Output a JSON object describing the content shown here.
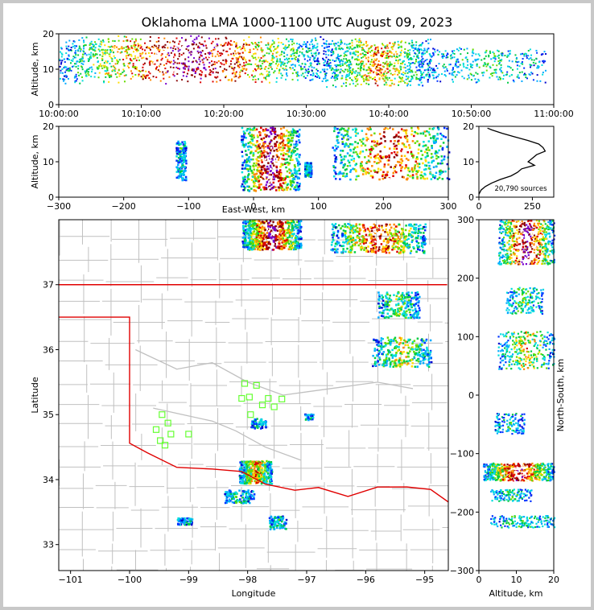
{
  "title": "Oklahoma LMA 1000-1100 UTC August 09, 2023",
  "colors": {
    "state_border": "#e00000",
    "county": "#c0c0c0",
    "river": "#c0c0c0",
    "stations": "#66ff33",
    "frame_bg": "#c8c8c8"
  },
  "chart_data": [
    {
      "id": "alt-vs-time",
      "type": "scatter",
      "ylabel": "Altitude, km",
      "xlabel": "",
      "ylim": [
        0,
        20
      ],
      "yticks": [
        "0",
        "10",
        "20"
      ],
      "xticks": [
        "10:00:00",
        "10:10:00",
        "10:20:00",
        "10:30:00",
        "10:40:00",
        "10:50:00",
        "11:00:00"
      ],
      "xlim_minutes": [
        0,
        60
      ],
      "density_clusters": [
        {
          "t_min": 0,
          "t_max": 32,
          "alt_min": 6,
          "alt_max": 20,
          "weight": 1.0
        },
        {
          "t_min": 32,
          "t_max": 45,
          "alt_min": 5,
          "alt_max": 19,
          "weight": 0.6
        },
        {
          "t_min": 45,
          "t_max": 59,
          "alt_min": 6,
          "alt_max": 17,
          "weight": 0.25
        }
      ]
    },
    {
      "id": "alt-vs-ew",
      "type": "scatter",
      "ylabel": "Altitude, km",
      "xlabel": "East-West, km",
      "xlim": [
        -300,
        300
      ],
      "ylim": [
        0,
        20
      ],
      "xticks": [
        "−300",
        "−200",
        "−100",
        "0",
        "100",
        "200",
        "300"
      ],
      "yticks": [
        "0",
        "10",
        "20"
      ],
      "density_clusters": [
        {
          "x_min": -120,
          "x_max": -105,
          "alt_min": 5,
          "alt_max": 16,
          "weight": 0.2
        },
        {
          "x_min": -20,
          "x_max": 70,
          "alt_min": 2,
          "alt_max": 20,
          "weight": 1.0
        },
        {
          "x_min": 78,
          "x_max": 88,
          "alt_min": 6,
          "alt_max": 10,
          "weight": 0.2
        },
        {
          "x_min": 120,
          "x_max": 300,
          "alt_min": 5,
          "alt_max": 20,
          "weight": 0.8
        }
      ]
    },
    {
      "id": "source-histogram",
      "type": "line",
      "xlim": [
        0,
        350
      ],
      "ylim": [
        0,
        20
      ],
      "xticks": [
        "0",
        "250"
      ],
      "yticks": [
        "0",
        "10",
        "20"
      ],
      "annotation": "20,790 sources",
      "profile": [
        [
          0,
          0.8
        ],
        [
          10,
          2
        ],
        [
          30,
          3
        ],
        [
          60,
          4
        ],
        [
          100,
          5
        ],
        [
          150,
          6
        ],
        [
          180,
          7
        ],
        [
          200,
          8
        ],
        [
          260,
          9
        ],
        [
          230,
          10
        ],
        [
          250,
          11
        ],
        [
          270,
          12
        ],
        [
          310,
          13
        ],
        [
          300,
          14
        ],
        [
          280,
          15
        ],
        [
          230,
          16
        ],
        [
          170,
          17
        ],
        [
          110,
          18
        ],
        [
          60,
          19
        ],
        [
          40,
          19.5
        ]
      ]
    },
    {
      "id": "plan-view-map",
      "type": "scatter",
      "xlabel": "Longitude",
      "ylabel": "Latitude",
      "xlim": [
        -101.2,
        -94.6
      ],
      "ylim": [
        32.6,
        38.0
      ],
      "xticks": [
        "−101",
        "−100",
        "−99",
        "−98",
        "−97",
        "−96",
        "−95"
      ],
      "yticks": [
        "33",
        "34",
        "35",
        "36",
        "37"
      ],
      "stations": [
        [
          -98.05,
          35.48
        ],
        [
          -97.85,
          35.45
        ],
        [
          -98.1,
          35.25
        ],
        [
          -97.97,
          35.27
        ],
        [
          -97.75,
          35.15
        ],
        [
          -97.65,
          35.25
        ],
        [
          -97.55,
          35.12
        ],
        [
          -97.42,
          35.24
        ],
        [
          -97.95,
          35.0
        ],
        [
          -99.45,
          35.0
        ],
        [
          -99.35,
          34.87
        ],
        [
          -99.55,
          34.77
        ],
        [
          -99.3,
          34.7
        ],
        [
          -99.48,
          34.6
        ],
        [
          -99.4,
          34.53
        ],
        [
          -99.0,
          34.7
        ]
      ],
      "density_clusters": [
        {
          "lon_min": -98.1,
          "lon_max": -97.1,
          "lat_min": 37.55,
          "lat_max": 38.0,
          "weight": 1.0
        },
        {
          "lon_min": -96.6,
          "lon_max": -95.0,
          "lat_min": 37.5,
          "lat_max": 37.95,
          "weight": 0.8
        },
        {
          "lon_min": -95.8,
          "lon_max": -95.1,
          "lat_min": 36.5,
          "lat_max": 36.9,
          "weight": 0.35
        },
        {
          "lon_min": -95.9,
          "lon_max": -94.9,
          "lat_min": 35.75,
          "lat_max": 36.2,
          "weight": 0.45
        },
        {
          "lon_min": -98.15,
          "lon_max": -97.6,
          "lat_min": 33.95,
          "lat_max": 34.3,
          "weight": 0.6
        },
        {
          "lon_min": -98.4,
          "lon_max": -97.9,
          "lat_min": 33.65,
          "lat_max": 33.85,
          "weight": 0.2
        },
        {
          "lon_min": -97.65,
          "lon_max": -97.35,
          "lat_min": 33.25,
          "lat_max": 33.45,
          "weight": 0.15
        },
        {
          "lon_min": -99.2,
          "lon_max": -98.95,
          "lat_min": 33.32,
          "lat_max": 33.42,
          "weight": 0.1
        },
        {
          "lon_min": -97.95,
          "lon_max": -97.7,
          "lat_min": 34.8,
          "lat_max": 34.95,
          "weight": 0.1
        },
        {
          "lon_min": -97.05,
          "lon_max": -96.9,
          "lat_min": 34.93,
          "lat_max": 35.02,
          "weight": 0.05
        }
      ],
      "state_border_points": [
        [
          -101.2,
          37.0
        ],
        [
          -94.62,
          37.0
        ],
        [
          -94.62,
          36.5
        ],
        [
          -101.2,
          36.5
        ],
        [
          -100.0,
          36.5
        ],
        [
          -100.0,
          34.56
        ],
        [
          -99.7,
          34.4
        ],
        [
          -99.2,
          34.2
        ],
        [
          -98.6,
          34.15
        ],
        [
          -98.1,
          34.12
        ],
        [
          -97.7,
          33.92
        ],
        [
          -97.2,
          33.85
        ],
        [
          -96.8,
          33.88
        ],
        [
          -96.3,
          33.75
        ],
        [
          -95.8,
          33.88
        ],
        [
          -95.3,
          33.88
        ],
        [
          -94.9,
          33.85
        ],
        [
          -94.6,
          33.65
        ]
      ]
    },
    {
      "id": "ns-vs-alt",
      "type": "scatter",
      "xlabel": "Altitude, km",
      "ylabel": "North-South, km",
      "xlim": [
        0,
        20
      ],
      "ylim": [
        -300,
        300
      ],
      "xticks": [
        "0",
        "10",
        "20"
      ],
      "yticks": [
        "−300",
        "−200",
        "−100",
        "0",
        "100",
        "200",
        "300"
      ],
      "density_clusters": [
        {
          "alt_min": 5,
          "alt_max": 20,
          "ns_min": 225,
          "ns_max": 300,
          "weight": 1.0
        },
        {
          "alt_min": 7,
          "alt_max": 17,
          "ns_min": 140,
          "ns_max": 185,
          "weight": 0.3
        },
        {
          "alt_min": 5,
          "alt_max": 20,
          "ns_min": 45,
          "ns_max": 110,
          "weight": 0.5
        },
        {
          "alt_min": 4,
          "alt_max": 12,
          "ns_min": -65,
          "ns_max": -30,
          "weight": 0.2
        },
        {
          "alt_min": 1,
          "alt_max": 20,
          "ns_min": -145,
          "ns_max": -115,
          "weight": 0.9
        },
        {
          "alt_min": 3,
          "alt_max": 14,
          "ns_min": -180,
          "ns_max": -160,
          "weight": 0.2
        },
        {
          "alt_min": 3,
          "alt_max": 20,
          "ns_min": -225,
          "ns_max": -205,
          "weight": 0.25
        }
      ]
    }
  ]
}
